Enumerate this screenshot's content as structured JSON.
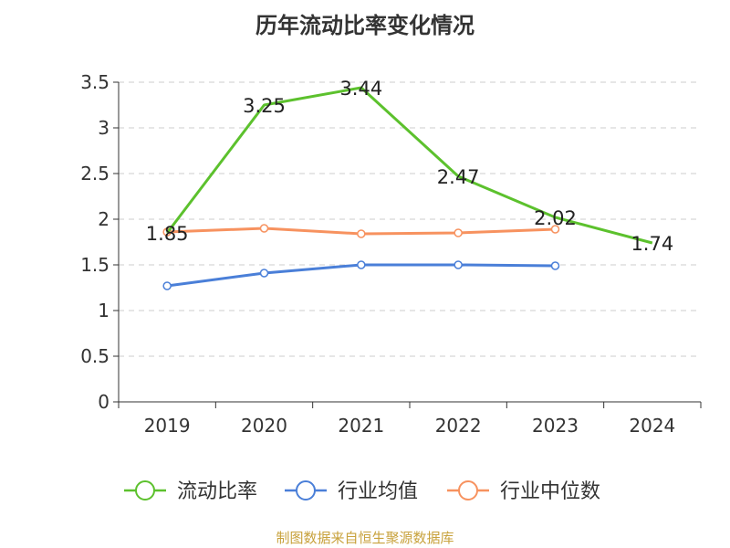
{
  "title": "历年流动比率变化情况",
  "source": "制图数据来自恒生聚源数据库",
  "colors": {
    "current_ratio": "#5cc12d",
    "industry_mean": "#4a7fd8",
    "industry_median": "#f7925f",
    "axis": "#333333",
    "grid": "#cccccc"
  },
  "chart_data": {
    "type": "line",
    "title": "历年流动比率变化情况",
    "categories": [
      "2019",
      "2020",
      "2021",
      "2022",
      "2023",
      "2024"
    ],
    "ylim": [
      0,
      3.5
    ],
    "yticks": [
      "0",
      "0.5",
      "1",
      "1.5",
      "2",
      "2.5",
      "3",
      "3.5"
    ],
    "grid": true,
    "legend_position": "bottom",
    "series": [
      {
        "name": "流动比率",
        "values": [
          1.85,
          3.25,
          3.44,
          2.47,
          2.02,
          1.74
        ],
        "labels": [
          "1.85",
          "3.25",
          "3.44",
          "2.47",
          "2.02",
          "1.74"
        ],
        "markers": false
      },
      {
        "name": "行业均值",
        "values": [
          1.27,
          1.41,
          1.5,
          1.5,
          1.49,
          null
        ],
        "markers": true
      },
      {
        "name": "行业中位数",
        "values": [
          1.86,
          1.9,
          1.84,
          1.85,
          1.89,
          null
        ],
        "markers": true
      }
    ]
  }
}
